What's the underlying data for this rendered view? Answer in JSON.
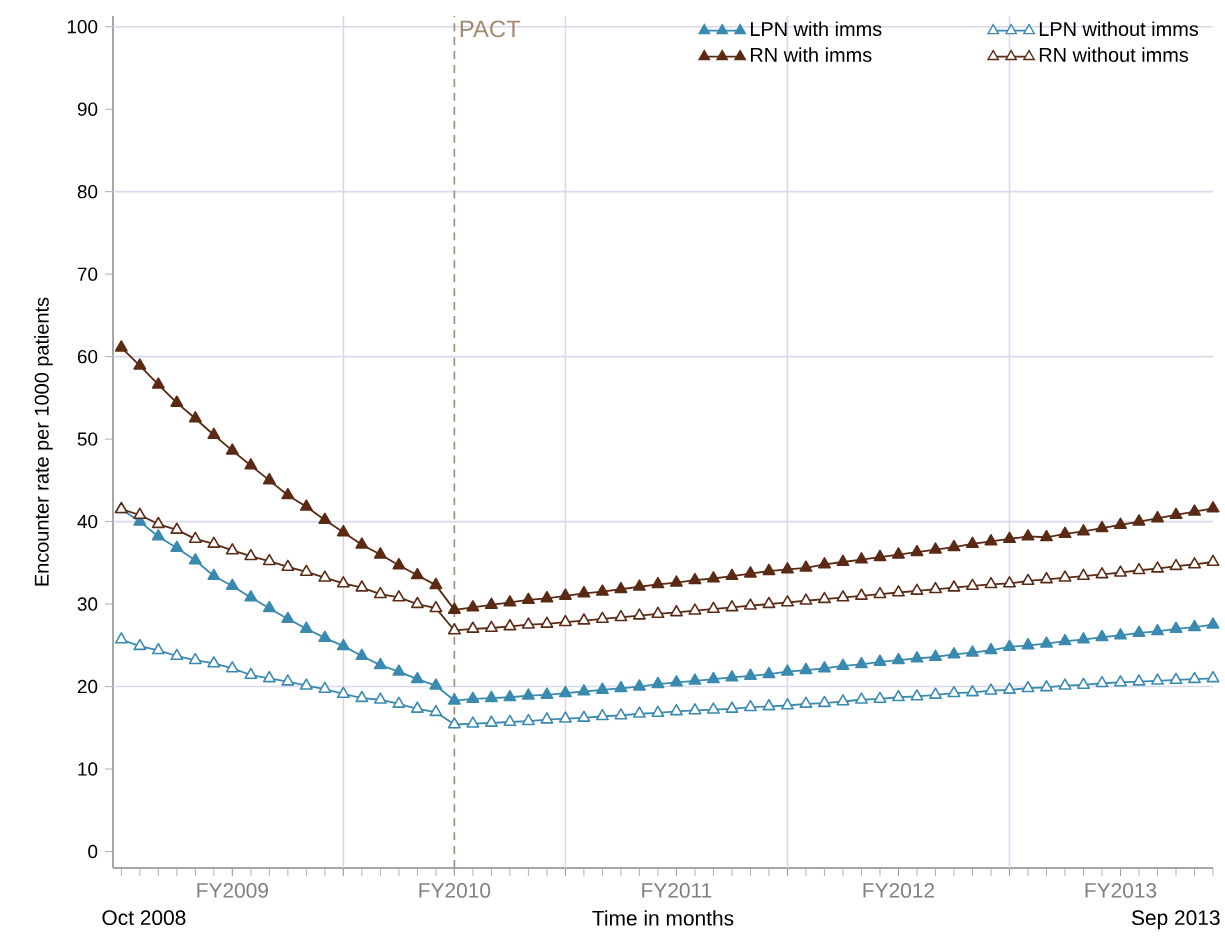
{
  "chart_data": {
    "type": "line",
    "xlabel": "Time in months",
    "ylabel": "Encounter rate per 1000 patients",
    "categories": [
      null,
      null,
      null,
      null,
      null,
      null,
      "FY2009",
      null,
      null,
      null,
      null,
      null,
      null,
      null,
      null,
      null,
      null,
      null,
      "FY2010",
      null,
      null,
      null,
      null,
      null,
      null,
      null,
      null,
      null,
      null,
      null,
      "FY2011",
      null,
      null,
      null,
      null,
      null,
      null,
      null,
      null,
      null,
      null,
      null,
      "FY2012",
      null,
      null,
      null,
      null,
      null,
      null,
      null,
      null,
      null,
      null,
      null,
      "FY2013",
      null,
      null,
      null,
      null,
      null
    ],
    "series": [
      {
        "name": "LPN with imms",
        "color": "#3a8ab0",
        "marker": "triangle",
        "values": [
          41.5,
          40.0,
          38.2,
          36.8,
          35.3,
          33.4,
          32.2,
          30.8,
          29.5,
          28.2,
          27.0,
          25.9,
          24.9,
          23.7,
          22.6,
          21.8,
          20.9,
          20.1,
          18.3,
          18.5,
          18.6,
          18.7,
          18.9,
          19.0,
          19.2,
          19.4,
          19.6,
          19.8,
          20.0,
          20.3,
          20.5,
          20.7,
          20.9,
          21.1,
          21.3,
          21.5,
          21.8,
          22.0,
          22.2,
          22.5,
          22.7,
          23.0,
          23.2,
          23.4,
          23.6,
          23.9,
          24.1,
          24.4,
          24.8,
          25.0,
          25.2,
          25.5,
          25.7,
          26.0,
          26.2,
          26.5,
          26.7,
          27.0,
          27.2,
          27.5
        ]
      },
      {
        "name": "LPN without imms",
        "color": "#3a8ab0",
        "marker": "triangle-open",
        "values": [
          25.7,
          24.9,
          24.4,
          23.7,
          23.2,
          22.8,
          22.2,
          21.4,
          21.0,
          20.6,
          20.1,
          19.7,
          19.1,
          18.6,
          18.4,
          17.9,
          17.3,
          16.9,
          15.4,
          15.5,
          15.6,
          15.7,
          15.8,
          16.0,
          16.1,
          16.2,
          16.4,
          16.5,
          16.7,
          16.8,
          17.0,
          17.1,
          17.2,
          17.3,
          17.5,
          17.6,
          17.7,
          17.9,
          18.0,
          18.2,
          18.4,
          18.5,
          18.7,
          18.8,
          19.0,
          19.2,
          19.3,
          19.5,
          19.6,
          19.8,
          19.9,
          20.1,
          20.2,
          20.4,
          20.5,
          20.6,
          20.7,
          20.8,
          20.9,
          21.0
        ]
      },
      {
        "name": "RN with imms",
        "color": "#5a2a14",
        "marker": "triangle",
        "values": [
          61.1,
          58.9,
          56.6,
          54.4,
          52.5,
          50.5,
          48.6,
          46.8,
          45.0,
          43.2,
          41.8,
          40.2,
          38.7,
          37.2,
          36.0,
          34.7,
          33.5,
          32.3,
          29.3,
          29.6,
          29.9,
          30.2,
          30.5,
          30.7,
          31.0,
          31.3,
          31.5,
          31.8,
          32.1,
          32.4,
          32.6,
          32.9,
          33.1,
          33.4,
          33.7,
          34.0,
          34.2,
          34.4,
          34.8,
          35.1,
          35.4,
          35.7,
          36.0,
          36.3,
          36.6,
          36.9,
          37.3,
          37.6,
          37.9,
          38.2,
          38.1,
          38.5,
          38.8,
          39.2,
          39.6,
          40.0,
          40.4,
          40.8,
          41.2,
          41.6
        ]
      },
      {
        "name": "RN without imms",
        "color": "#5a2a14",
        "marker": "triangle-open",
        "values": [
          41.5,
          40.8,
          39.7,
          39.0,
          37.9,
          37.3,
          36.5,
          35.8,
          35.2,
          34.5,
          33.9,
          33.2,
          32.5,
          32.0,
          31.2,
          30.8,
          30.0,
          29.5,
          26.8,
          27.0,
          27.1,
          27.3,
          27.5,
          27.6,
          27.8,
          28.0,
          28.2,
          28.4,
          28.6,
          28.8,
          29.0,
          29.2,
          29.4,
          29.6,
          29.8,
          30.0,
          30.2,
          30.4,
          30.6,
          30.8,
          31.0,
          31.2,
          31.4,
          31.6,
          31.8,
          32.0,
          32.2,
          32.4,
          32.5,
          32.8,
          33.0,
          33.2,
          33.4,
          33.6,
          33.8,
          34.1,
          34.3,
          34.6,
          34.8,
          35.1
        ]
      }
    ],
    "annotations": [
      "Oct 2008",
      "Sep 2013"
    ],
    "ylim": [
      -2,
      101.3
    ],
    "yticks": [
      0,
      10,
      20,
      30,
      40,
      50,
      60,
      70,
      80,
      90,
      100
    ],
    "grid": true,
    "legend": "top right",
    "line_style": "solid",
    "ref_lines": [
      {
        "axis": "x",
        "value": "FY2010",
        "label": "PACT",
        "color": "#a08a70",
        "line_style": "dashed"
      }
    ]
  }
}
